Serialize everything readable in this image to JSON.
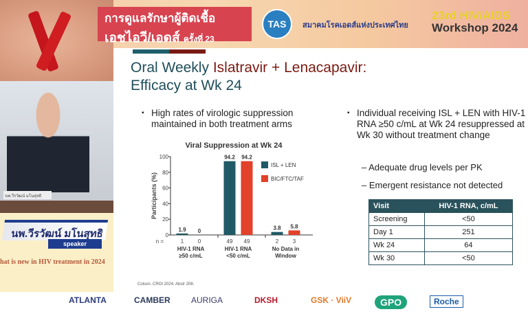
{
  "header": {
    "event_line1": "การดูแลรักษาผู้ติดเชื้อ",
    "event_line2": "เอชไอวี/เอดส์",
    "event_edition": "ครั้งที่ 23",
    "society_logo": "TAS",
    "society_name": "สมาคมโรคเอดส์แห่งประเทศไทย",
    "workshop_line1": "23rd HIV/AIDS",
    "workshop_line2": "Workshop 2024"
  },
  "speaker": {
    "nameplate": "นพ.วีรวัฒน์ มโนสุทธิ",
    "name": "นพ.วีรวัฒน์ มโนสุทธิ",
    "role": "speaker",
    "topic": "hat is new in HIV treatment in 2024"
  },
  "slide": {
    "title_part1": "Oral Weekly ",
    "title_part2": "Islatravir + Lenacapavir:",
    "title_line2": "Efficacy at Wk 24",
    "bullet1": "High rates of virologic suppression maintained in both treatment arms",
    "bullet2": "Individual receiving ISL + LEN with HIV-1 RNA ≥50 c/mL at Wk 24 resuppressed at Wk 30 without treatment change",
    "sub1": "– Adequate drug levels per PK",
    "sub2": "– Emergent resistance not detected",
    "table": {
      "headers": [
        "Visit",
        "HIV-1 RNA, c/mL"
      ],
      "rows": [
        [
          "Screening",
          "<50"
        ],
        [
          "Day 1",
          "251"
        ],
        [
          "Wk 24",
          "64"
        ],
        [
          "Wk 30",
          "<50"
        ]
      ]
    },
    "citation": "Colson. CROI 2024. Abstr 208."
  },
  "chart_data": {
    "type": "bar",
    "title": "Viral Suppression at Wk 24",
    "ylabel": "Participants (%)",
    "ylim": [
      0,
      100
    ],
    "yticks": [
      0,
      20,
      40,
      60,
      80,
      100
    ],
    "categories": [
      "HIV-1 RNA ≥50 c/mL",
      "HIV-1 RNA <50 c/mL",
      "No Data in Window"
    ],
    "category_lines": [
      [
        "HIV-1 RNA",
        "≥50 c/mL"
      ],
      [
        "HIV-1 RNA",
        "<50 c/mL"
      ],
      [
        "No Data in",
        "Window"
      ]
    ],
    "n_label": "n =",
    "series": [
      {
        "name": "ISL + LEN",
        "color": "#1f5a66",
        "values": [
          1.9,
          94.2,
          3.8
        ],
        "labels": [
          "1.9",
          "94.2",
          "3.8"
        ],
        "n": [
          "1",
          "49",
          "2"
        ]
      },
      {
        "name": "BIC/FTC/TAF",
        "color": "#e2412a",
        "values": [
          0,
          94.2,
          5.8
        ],
        "labels": [
          "0",
          "94.2",
          "5.8"
        ],
        "n": [
          "0",
          "49",
          "3"
        ]
      }
    ],
    "legend": "top-right"
  },
  "sponsors": [
    "ATLANTA",
    "CAMBER",
    "AURIGA",
    "DKSH",
    "GSK · ViiV",
    "GPO",
    "Roche"
  ]
}
